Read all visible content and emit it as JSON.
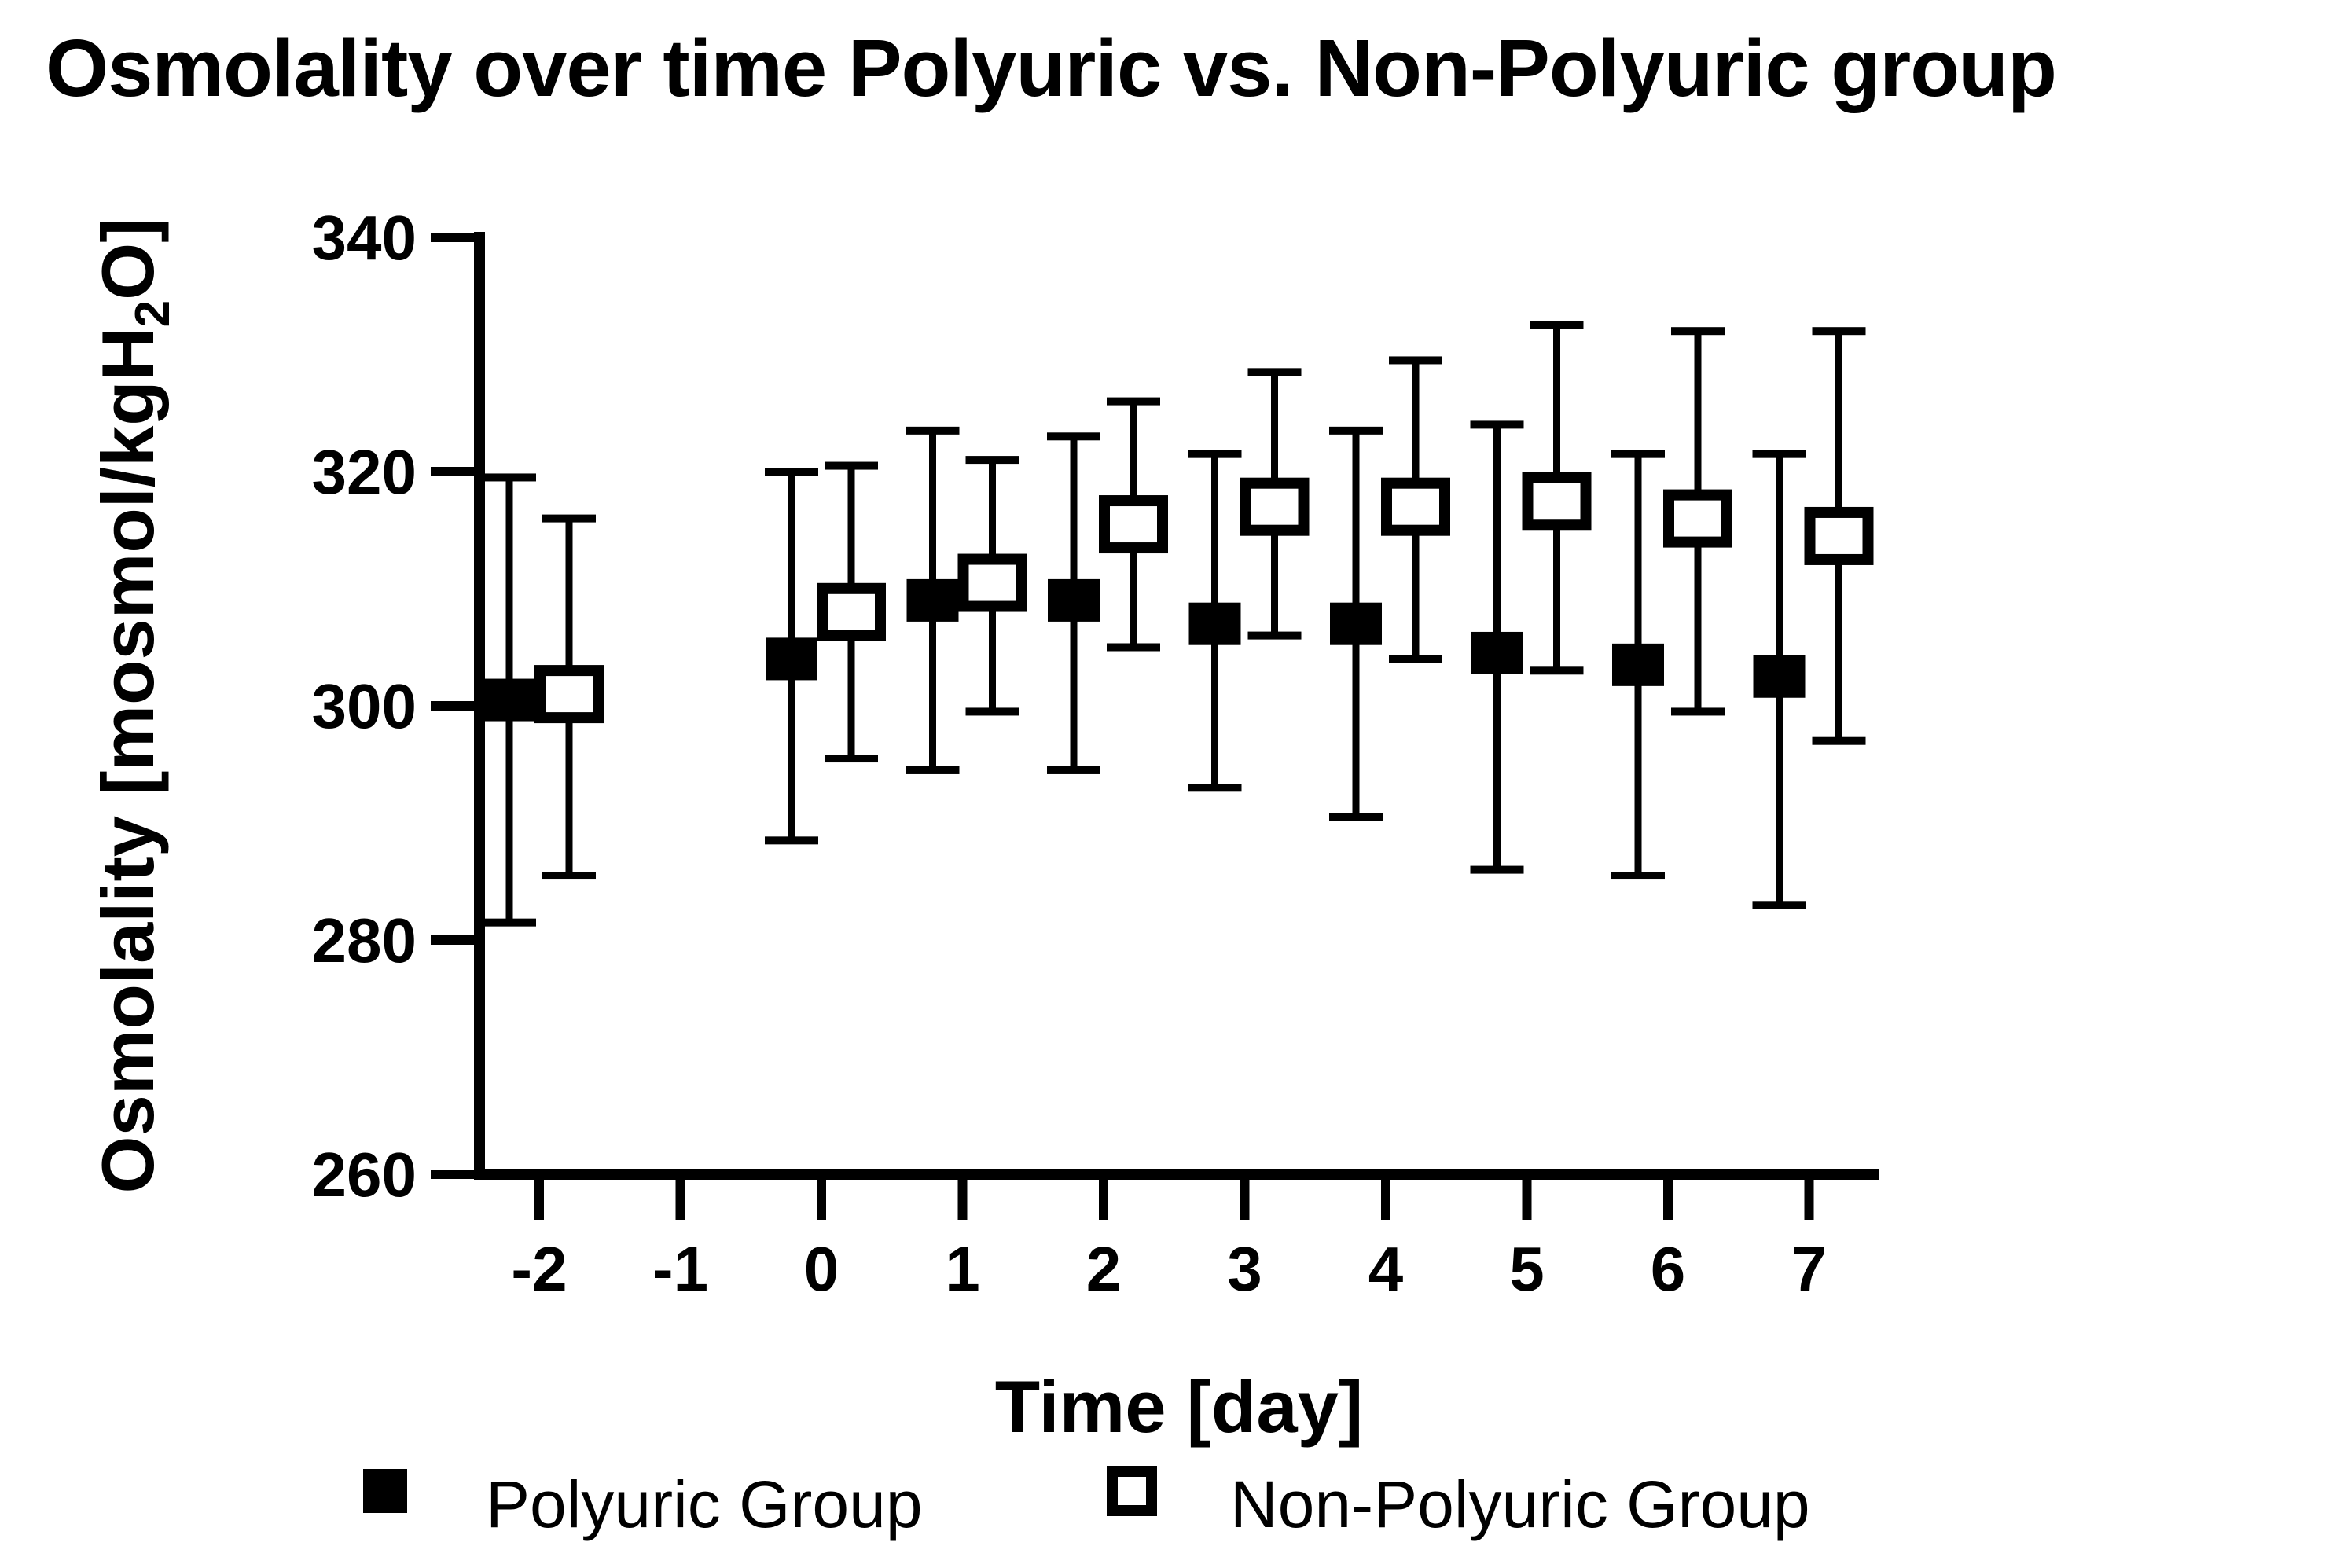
{
  "title": "Osmolality over time Polyuric vs. Non-Polyuric group",
  "colors": {
    "foreground": "#000000",
    "background": "#ffffff"
  },
  "legend": {
    "items": [
      {
        "label": "Polyuric Group",
        "marker": "filled-square-icon"
      },
      {
        "label": "Non-Polyuric Group",
        "marker": "open-square-icon"
      }
    ]
  },
  "chart_data": {
    "type": "scatter",
    "title": "Osmolality over time Polyuric vs. Non-Polyuric group",
    "xlabel": "Time [day]",
    "ylabel": "Osmolality [mosmol/kgH2O]",
    "ylabel_parts": {
      "pre": "Osmolality [mosmol/kgH",
      "sub": "2",
      "post": "O]"
    },
    "xlim": [
      -2.6,
      7.5
    ],
    "ylim": [
      260,
      340
    ],
    "xticks": [
      -2,
      -1,
      0,
      1,
      2,
      3,
      4,
      5,
      6,
      7
    ],
    "yticks": [
      340,
      320,
      300,
      280,
      260
    ],
    "grid": false,
    "legend_position": "bottom",
    "error_bars": "sd",
    "series": [
      {
        "name": "Polyuric Group",
        "marker": "filled-square",
        "x": [
          -2,
          0,
          1,
          2,
          3,
          4,
          5,
          6,
          7
        ],
        "mean": [
          300.5,
          304,
          309,
          309,
          307,
          307,
          304.5,
          303.5,
          302.5
        ],
        "upper": [
          319.5,
          320,
          323.5,
          323,
          321.5,
          323.5,
          324,
          321.5,
          321.5
        ],
        "lower": [
          281.5,
          288.5,
          294.5,
          294.5,
          293,
          290.5,
          286,
          285.5,
          283
        ]
      },
      {
        "name": "Non-Polyuric Group",
        "marker": "open-square",
        "x": [
          -2,
          0,
          1,
          2,
          3,
          4,
          5,
          6,
          7
        ],
        "mean": [
          301,
          308,
          310.5,
          315.5,
          317,
          317,
          317.5,
          316,
          314.5
        ],
        "upper": [
          316,
          320.5,
          321,
          326,
          328.5,
          329.5,
          332.5,
          332,
          332
        ],
        "lower": [
          285.5,
          295.5,
          299.5,
          305,
          306,
          304,
          303,
          299.5,
          297
        ]
      }
    ]
  }
}
